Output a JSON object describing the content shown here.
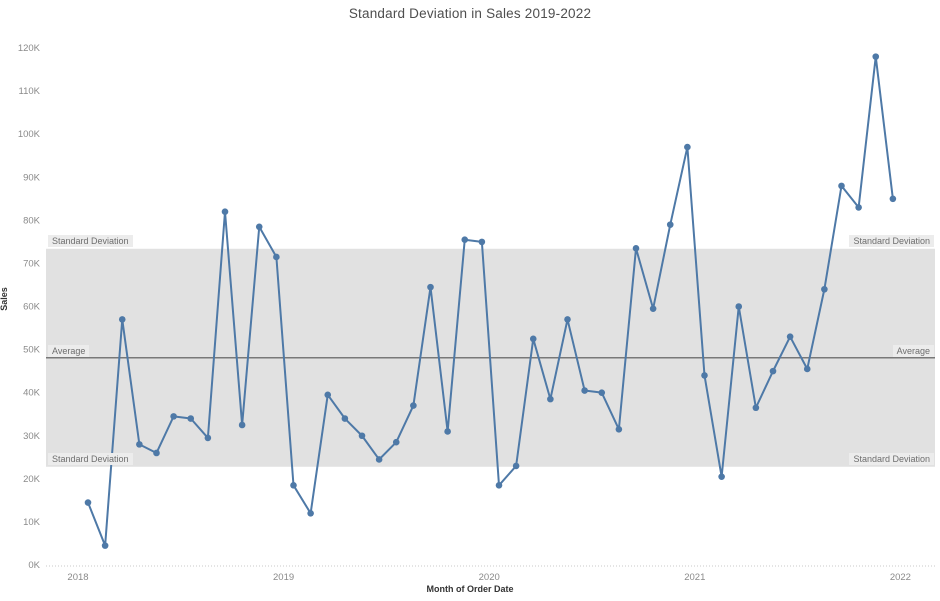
{
  "title": "Standard Deviation in Sales 2019-2022",
  "axes": {
    "y_label": "Sales",
    "x_label": "Month of Order Date",
    "y_tick_labels": [
      "0K",
      "10K",
      "20K",
      "30K",
      "40K",
      "50K",
      "60K",
      "70K",
      "80K",
      "90K",
      "100K",
      "110K",
      "120K"
    ],
    "x_tick_labels": [
      "2018",
      "2019",
      "2020",
      "2021",
      "2022"
    ]
  },
  "annotations": {
    "std_dev": "Standard Deviation",
    "average": "Average"
  },
  "colors": {
    "line": "#4e79a7",
    "band": "#e1e1e1",
    "average_line": "#555555",
    "axis_line": "#c9c9c9",
    "label_bg": "#ececec",
    "tick_text": "#8a8a8a"
  },
  "chart_data": {
    "type": "line",
    "title": "Standard Deviation in Sales 2019-2022",
    "xlabel": "Month of Order Date",
    "ylabel": "Sales",
    "unit": "thousands (K)",
    "ylim_k": [
      0,
      125
    ],
    "y_tick_step_k": 10,
    "grid": "off",
    "legend": "none",
    "y_tick_labels": [
      "0K",
      "10K",
      "20K",
      "30K",
      "40K",
      "50K",
      "60K",
      "70K",
      "80K",
      "90K",
      "100K",
      "110K",
      "120K"
    ],
    "x_tick_labels": [
      "2018",
      "2019",
      "2020",
      "2021",
      "2022"
    ],
    "months": [
      "Jan 2018",
      "Feb 2018",
      "Mar 2018",
      "Apr 2018",
      "May 2018",
      "Jun 2018",
      "Jul 2018",
      "Aug 2018",
      "Sep 2018",
      "Oct 2018",
      "Nov 2018",
      "Dec 2018",
      "Jan 2019",
      "Feb 2019",
      "Mar 2019",
      "Apr 2019",
      "May 2019",
      "Jun 2019",
      "Jul 2019",
      "Aug 2019",
      "Sep 2019",
      "Oct 2019",
      "Nov 2019",
      "Dec 2019",
      "Jan 2020",
      "Feb 2020",
      "Mar 2020",
      "Apr 2020",
      "May 2020",
      "Jun 2020",
      "Jul 2020",
      "Aug 2020",
      "Sep 2020",
      "Oct 2020",
      "Nov 2020",
      "Dec 2020",
      "Jan 2021",
      "Feb 2021",
      "Mar 2021",
      "Apr 2021",
      "May 2021",
      "Jun 2021",
      "Jul 2021",
      "Aug 2021",
      "Sep 2021",
      "Oct 2021",
      "Nov 2021",
      "Dec 2021"
    ],
    "values_k": [
      14.5,
      4.5,
      57,
      28,
      26,
      34.5,
      34,
      29.5,
      82,
      32.5,
      78.5,
      71.5,
      18.5,
      12,
      39.5,
      34,
      30,
      24.5,
      28.5,
      37,
      64.5,
      31,
      75.5,
      75,
      18.5,
      23,
      52.5,
      38.5,
      57,
      40.5,
      40,
      31.5,
      73.5,
      59.5,
      79,
      97,
      44,
      20.5,
      60,
      36.5,
      45,
      53,
      45.5,
      64,
      88,
      83,
      118,
      85
    ],
    "reference_lines": {
      "average_k": 48.1,
      "band_lower_k": 22.8,
      "band_upper_k": 73.4,
      "band_label": "Standard Deviation",
      "average_label": "Average"
    }
  }
}
